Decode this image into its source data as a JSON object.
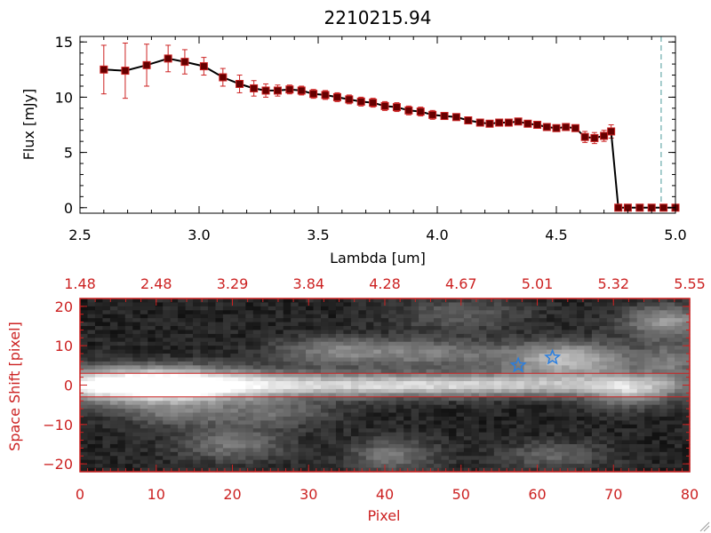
{
  "colors": {
    "ink": "#000000",
    "accent": "#cc2222",
    "errorbar": "#cc2222",
    "marker": "#660000",
    "marker_edge": "#cc2222",
    "guide": "#4a9a9a",
    "star": "#2a7fe0"
  },
  "chart_data": [
    {
      "type": "line",
      "title": "2210215.94",
      "xlabel": "Lambda [um]",
      "ylabel": "Flux [mJy]",
      "xlim": [
        2.5,
        5.0
      ],
      "ylim": [
        -0.5,
        15.5
      ],
      "xticks": [
        2.5,
        3.0,
        3.5,
        4.0,
        4.5,
        5.0
      ],
      "xtick_labels": [
        "2.5",
        "3.0",
        "3.5",
        "4.0",
        "4.5",
        "5.0"
      ],
      "yticks": [
        0,
        5,
        10,
        15
      ],
      "ytick_labels": [
        "0",
        "5",
        "10",
        "15"
      ],
      "guide_line_x": 4.94,
      "series": [
        {
          "name": "flux",
          "x": [
            2.6,
            2.69,
            2.78,
            2.87,
            2.94,
            3.02,
            3.1,
            3.17,
            3.23,
            3.28,
            3.33,
            3.38,
            3.43,
            3.48,
            3.53,
            3.58,
            3.63,
            3.68,
            3.73,
            3.78,
            3.83,
            3.88,
            3.93,
            3.98,
            4.03,
            4.08,
            4.13,
            4.18,
            4.22,
            4.26,
            4.3,
            4.34,
            4.38,
            4.42,
            4.46,
            4.5,
            4.54,
            4.58,
            4.62,
            4.66,
            4.7,
            4.73,
            4.76,
            4.8,
            4.85,
            4.9,
            4.95,
            5.0
          ],
          "y": [
            12.5,
            12.4,
            12.9,
            13.5,
            13.2,
            12.8,
            11.8,
            11.2,
            10.8,
            10.6,
            10.6,
            10.7,
            10.6,
            10.3,
            10.2,
            10.0,
            9.8,
            9.6,
            9.5,
            9.2,
            9.1,
            8.8,
            8.7,
            8.4,
            8.3,
            8.2,
            7.9,
            7.7,
            7.6,
            7.7,
            7.7,
            7.8,
            7.6,
            7.5,
            7.3,
            7.2,
            7.3,
            7.2,
            6.4,
            6.3,
            6.5,
            6.9,
            0.0,
            0.0,
            0.0,
            0.0,
            0.0,
            0.0
          ],
          "yerr": [
            2.2,
            2.5,
            1.9,
            1.2,
            1.1,
            0.8,
            0.8,
            0.8,
            0.7,
            0.6,
            0.5,
            0.4,
            0.4,
            0.4,
            0.4,
            0.4,
            0.4,
            0.4,
            0.4,
            0.4,
            0.4,
            0.4,
            0.4,
            0.4,
            0.3,
            0.3,
            0.3,
            0.3,
            0.3,
            0.3,
            0.3,
            0.3,
            0.3,
            0.3,
            0.3,
            0.3,
            0.3,
            0.3,
            0.5,
            0.5,
            0.5,
            0.6,
            0.3,
            0.3,
            0.3,
            0.3,
            0.3,
            0.3
          ]
        }
      ]
    },
    {
      "type": "heatmap",
      "xlabel": "Pixel",
      "ylabel": "Space Shift [pixel]",
      "xlim": [
        0,
        80
      ],
      "ylim": [
        -22,
        22
      ],
      "xticks": [
        0,
        10,
        20,
        30,
        40,
        50,
        60,
        70,
        80
      ],
      "xtick_labels": [
        "0",
        "10",
        "20",
        "30",
        "40",
        "50",
        "60",
        "70",
        "80"
      ],
      "yticks": [
        -20,
        -10,
        0,
        10,
        20
      ],
      "ytick_labels": [
        "−20",
        "−10",
        "0",
        "10",
        "20"
      ],
      "top_axis_ticks": [
        0,
        10,
        20,
        30,
        40,
        50,
        60,
        70,
        80
      ],
      "top_axis_labels": [
        "1.48",
        "2.48",
        "3.29",
        "3.84",
        "4.28",
        "4.67",
        "5.01",
        "5.32",
        "5.55"
      ],
      "extraction_band": [
        -3,
        3
      ],
      "blobs": [
        {
          "x": 9,
          "y": 0,
          "sx": 9,
          "sy": 3.0,
          "amp": 1.0
        },
        {
          "x": 28,
          "y": 0,
          "sx": 26,
          "sy": 2.2,
          "amp": 0.5
        },
        {
          "x": 55,
          "y": 0,
          "sx": 20,
          "sy": 1.8,
          "amp": 0.38
        },
        {
          "x": 72,
          "y": -1.5,
          "sx": 4,
          "sy": 3,
          "amp": 0.42
        },
        {
          "x": 64,
          "y": 6.5,
          "sx": 6,
          "sy": 3,
          "amp": 0.6
        },
        {
          "x": 34,
          "y": 8.5,
          "sx": 6,
          "sy": 2.5,
          "amp": 0.35
        },
        {
          "x": 47,
          "y": 8,
          "sx": 6,
          "sy": 2.5,
          "amp": 0.3
        },
        {
          "x": 77,
          "y": 16,
          "sx": 4,
          "sy": 3,
          "amp": 0.45
        },
        {
          "x": 78,
          "y": 6,
          "sx": 2.5,
          "sy": 3,
          "amp": 0.3
        },
        {
          "x": 20,
          "y": -15,
          "sx": 5,
          "sy": 3,
          "amp": 0.3
        },
        {
          "x": 41,
          "y": -18,
          "sx": 4,
          "sy": 3,
          "amp": 0.3
        },
        {
          "x": 25,
          "y": -7,
          "sx": 6,
          "sy": 2.5,
          "amp": 0.25
        },
        {
          "x": 62,
          "y": -18,
          "sx": 5,
          "sy": 2.5,
          "amp": 0.22
        },
        {
          "x": 12,
          "y": -7,
          "sx": 5,
          "sy": 2.5,
          "amp": 0.25
        },
        {
          "x": 50,
          "y": 18,
          "sx": 6,
          "sy": 3,
          "amp": 0.2
        }
      ],
      "markers": [
        {
          "x": 57.5,
          "y": 5,
          "symbol": "star"
        },
        {
          "x": 62,
          "y": 7,
          "symbol": "star"
        }
      ]
    }
  ]
}
